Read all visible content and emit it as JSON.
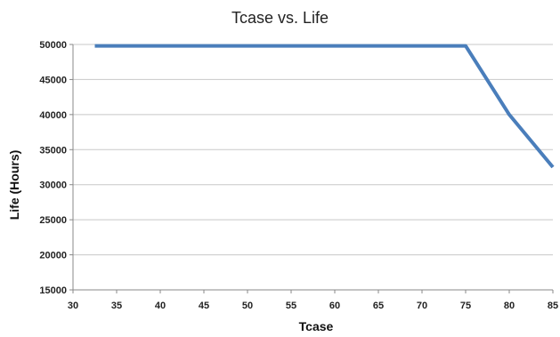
{
  "chart_data": {
    "type": "line",
    "title": "Tcase vs. Life",
    "xlabel": "Tcase",
    "ylabel": "Life (Hours)",
    "xlim": [
      30,
      85
    ],
    "ylim": [
      15000,
      50000
    ],
    "xticks": [
      30,
      35,
      40,
      45,
      50,
      55,
      60,
      65,
      70,
      75,
      80,
      85
    ],
    "yticks": [
      15000,
      20000,
      25000,
      30000,
      35000,
      40000,
      45000,
      50000
    ],
    "grid": "horizontal",
    "legend": "none",
    "series": [
      {
        "color": "#4a7ebb",
        "x": [
          32.5,
          75,
          80,
          85
        ],
        "y": [
          49800,
          49800,
          40000,
          32500
        ]
      }
    ]
  }
}
